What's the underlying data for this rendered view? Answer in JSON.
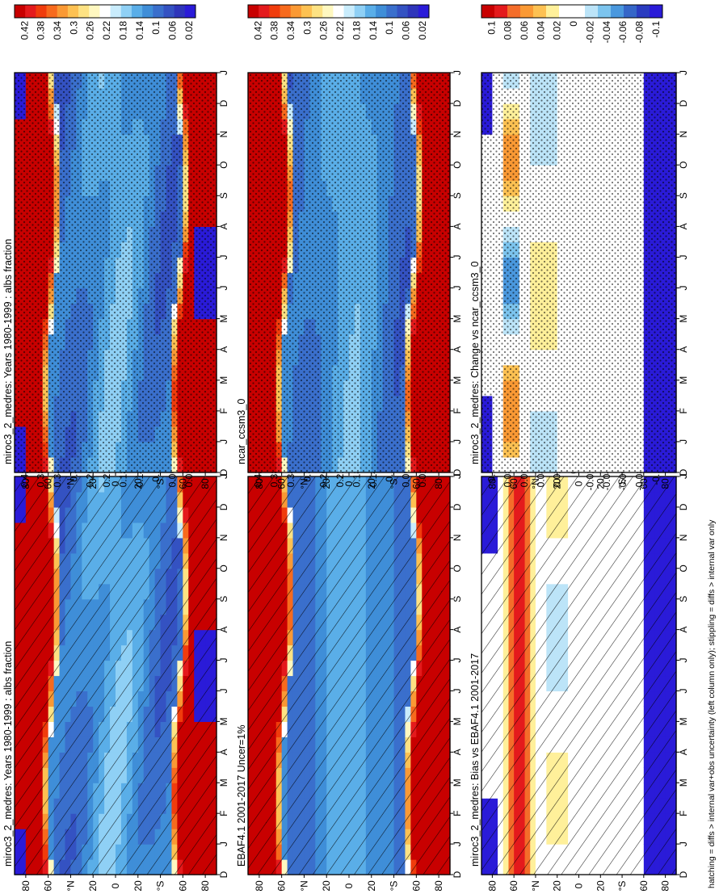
{
  "footnote": "hatching = diffs > internal var+obs uncertainty (left column only); stippling = diffs > internal var only",
  "months": [
    "D",
    "J",
    "F",
    "M",
    "A",
    "M",
    "J",
    "J",
    "A",
    "S",
    "O",
    "N",
    "D",
    "J"
  ],
  "lat_ticks": [
    "80",
    "60",
    "°N",
    "20",
    "0",
    "20",
    "°S",
    "60",
    "80"
  ],
  "chart_data": [
    {
      "type": "heatmap",
      "title": "miroc3_2_medres: Years 1980-1999 : albs fraction",
      "x": [
        "D",
        "J",
        "F",
        "M",
        "A",
        "M",
        "J",
        "J",
        "A",
        "S",
        "O",
        "N",
        "D",
        "J"
      ],
      "y_ticks": [
        "80",
        "60",
        "°N",
        "20",
        "0",
        "20",
        "°S",
        "60",
        "80"
      ],
      "field": "model",
      "overlay": "hatching",
      "colorbar": {
        "ticks": [
          "0.42",
          "0.38",
          "0.34",
          "0.3",
          "0.26",
          "0.22",
          "0.18",
          "0.14",
          "0.1",
          "0.06",
          "0.02"
        ],
        "range": [
          0,
          0.44
        ]
      }
    },
    {
      "type": "heatmap",
      "title": "miroc3_2_medres: Years 1980-1999 : albs fraction",
      "x": [
        "D",
        "J",
        "F",
        "M",
        "A",
        "M",
        "J",
        "J",
        "A",
        "S",
        "O",
        "N",
        "D",
        "J"
      ],
      "y_ticks": [
        "80",
        "60",
        "°N",
        "20",
        "0",
        "20",
        "°S",
        "60",
        "80"
      ],
      "field": "model",
      "overlay": "stippling",
      "colorbar": {
        "ticks": [
          "0.42",
          "0.38",
          "0.34",
          "0.3",
          "0.26",
          "0.22",
          "0.18",
          "0.14",
          "0.1",
          "0.06",
          "0.02"
        ],
        "range": [
          0,
          0.44
        ]
      }
    },
    {
      "type": "heatmap",
      "title": "EBAF4.1 2001-2017 Uncer=1%",
      "x": [
        "D",
        "J",
        "F",
        "M",
        "A",
        "M",
        "J",
        "J",
        "A",
        "S",
        "O",
        "N",
        "D",
        "J"
      ],
      "y_ticks": [
        "80",
        "60",
        "°N",
        "20",
        "0",
        "20",
        "°S",
        "60",
        "80"
      ],
      "field": "obs",
      "overlay": "hatching",
      "colorbar": {
        "ticks": [
          "0.42",
          "0.38",
          "0.34",
          "0.3",
          "0.26",
          "0.22",
          "0.18",
          "0.14",
          "0.1",
          "0.06",
          "0.02"
        ],
        "range": [
          0,
          0.44
        ]
      }
    },
    {
      "type": "heatmap",
      "title": "ncar_ccsm3_0",
      "x": [
        "D",
        "J",
        "F",
        "M",
        "A",
        "M",
        "J",
        "J",
        "A",
        "S",
        "O",
        "N",
        "D",
        "J"
      ],
      "y_ticks": [
        "80",
        "60",
        "°N",
        "20",
        "0",
        "20",
        "°S",
        "60",
        "80"
      ],
      "field": "ref",
      "overlay": "stippling",
      "colorbar": {
        "ticks": [
          "0.42",
          "0.38",
          "0.34",
          "0.3",
          "0.26",
          "0.22",
          "0.18",
          "0.14",
          "0.1",
          "0.06",
          "0.02"
        ],
        "range": [
          0,
          0.44
        ]
      }
    },
    {
      "type": "heatmap",
      "title": "miroc3_2_medres: Bias vs EBAF4.1 2001-2017",
      "x": [
        "D",
        "J",
        "F",
        "M",
        "A",
        "M",
        "J",
        "J",
        "A",
        "S",
        "O",
        "N",
        "D",
        "J"
      ],
      "y_ticks": [
        "80",
        "60",
        "°N",
        "20",
        "0",
        "20",
        "°S",
        "60",
        "80"
      ],
      "field": "bias",
      "overlay": "hatching",
      "colorbar": {
        "ticks": [
          "0.1",
          "0.08",
          "0.06",
          "0.04",
          "0.02",
          "0",
          "-0.02",
          "-0.04",
          "-0.06",
          "-0.08",
          "-0.1"
        ],
        "range": [
          -0.11,
          0.11
        ]
      }
    },
    {
      "type": "heatmap",
      "title": "miroc3_2_medres: Change vs ncar_ccsm3_0",
      "x": [
        "D",
        "J",
        "F",
        "M",
        "A",
        "M",
        "J",
        "J",
        "A",
        "S",
        "O",
        "N",
        "D",
        "J"
      ],
      "y_ticks": [
        "80",
        "60",
        "°N",
        "20",
        "0",
        "20",
        "°S",
        "60",
        "80"
      ],
      "field": "change",
      "overlay": "stippling",
      "colorbar": {
        "ticks": [
          "0.1",
          "0.08",
          "0.06",
          "0.04",
          "0.02",
          "0",
          "-0.02",
          "-0.04",
          "-0.06",
          "-0.08",
          "-0.1"
        ],
        "range": [
          -0.11,
          0.11
        ]
      }
    }
  ],
  "colors": {
    "abs_scale": [
      "#c80000",
      "#e41a1c",
      "#f03c0c",
      "#f76a1d",
      "#fa9934",
      "#fdc152",
      "#fde283",
      "#fff8c0",
      "#ffffff",
      "#c9ecfc",
      "#8fd0f5",
      "#5aaee8",
      "#3f8ed8",
      "#3a6fcc",
      "#3452c2",
      "#2e35ba",
      "#2a1bd8"
    ],
    "diff_scale": [
      "#c80000",
      "#e41a1c",
      "#f46d2a",
      "#fa9934",
      "#fdc152",
      "#fff09a",
      "#ffffff",
      "#ffffff",
      "#bce4f8",
      "#7cc4ee",
      "#4a98de",
      "#3566c8",
      "#2a3cc0",
      "#2a1bd8"
    ]
  }
}
